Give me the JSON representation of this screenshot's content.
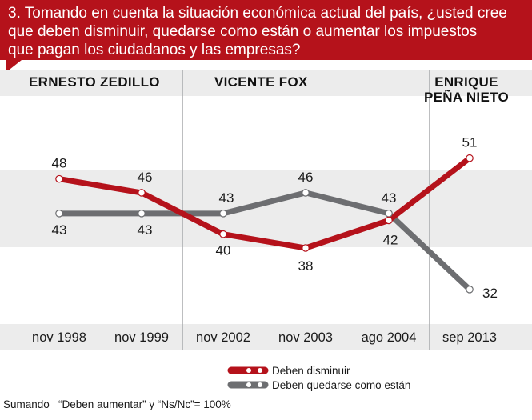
{
  "question": {
    "lines": [
      "3. Tomando en cuenta la situación económica actual del país, ¿usted cree",
      "que deben disminuir, quedarse como están o aumentar los impuestos",
      "que pagan los ciudadanos y las empresas?"
    ]
  },
  "colors": {
    "header_bg": "#b5121b",
    "band": "#ececec",
    "red_series": "#b5121b",
    "gray_series": "#6d6e71",
    "divider": "#a7a9ac"
  },
  "eras": [
    {
      "lines": [
        "ERNESTO  ZEDILLO"
      ]
    },
    {
      "lines": [
        "VICENTE FOX"
      ]
    },
    {
      "lines": [
        "ENRIQUE",
        "PEÑA NIETO"
      ]
    }
  ],
  "footnote": "Sumando   “Deben aumentar” y “Ns/Nc”= 100%",
  "chart_data": {
    "type": "line",
    "categories": [
      "nov 1998",
      "nov 1999",
      "nov 2002",
      "nov 2003",
      "ago 2004",
      "sep 2013"
    ],
    "series": [
      {
        "name": "Deben disminuir",
        "color": "#b5121b",
        "values": [
          48,
          46,
          40,
          38,
          42,
          51
        ]
      },
      {
        "name": "Deben quedarse como están",
        "color": "#6d6e71",
        "values": [
          43,
          43,
          43,
          46,
          43,
          32
        ]
      }
    ],
    "ylim": [
      27,
      60
    ],
    "title": "",
    "xlabel": "",
    "ylabel": "",
    "legend": "bottom",
    "grid": false
  }
}
